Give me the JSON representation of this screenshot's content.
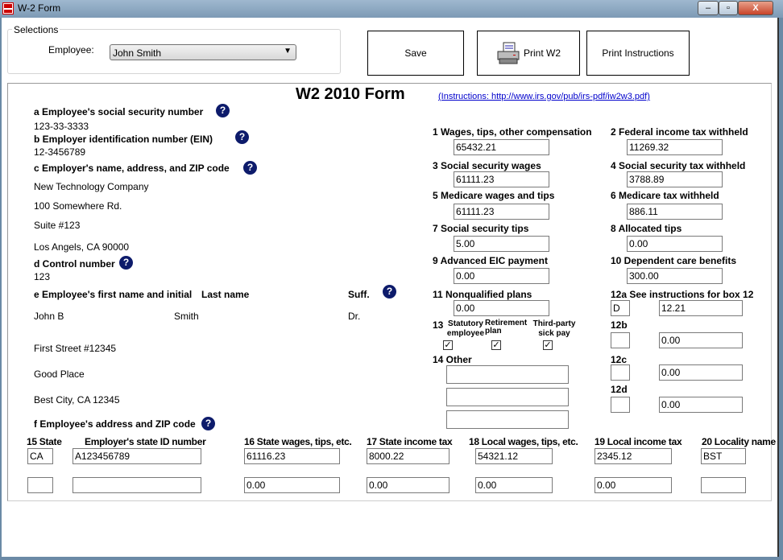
{
  "window": {
    "title": "W-2 Form",
    "minimize": "–",
    "maximize": "▫",
    "close": "X"
  },
  "selections": {
    "legend": "Selections",
    "employee_label": "Employee:",
    "employee_value": "John Smith"
  },
  "toolbar": {
    "save": "Save",
    "print_w2": "Print W2",
    "print_instructions": "Print Instructions"
  },
  "form": {
    "title": "W2 2010 Form",
    "instructions_link": "(Instructions: http://www.irs.gov/pub/irs-pdf/iw2w3.pdf)",
    "help_glyph": "?",
    "a": {
      "label": "a Employee's social security number",
      "value": "123-33-3333"
    },
    "b": {
      "label": "b Employer identification number (EIN)",
      "value": "12-3456789"
    },
    "c": {
      "label": "c Employer's name, address, and ZIP code",
      "lines": [
        "New Technology Company",
        "100 Somewhere Rd.",
        "Suite #123",
        "Los Angels, CA 90000"
      ]
    },
    "d": {
      "label": "d Control number",
      "value": "123"
    },
    "e": {
      "label": "e Employee's first name and initial",
      "last_label": "Last name",
      "suff_label": "Suff.",
      "first": "John B",
      "last": "Smith",
      "suff": "Dr.",
      "address": [
        "First Street #12345",
        "Good Place",
        "Best City, CA 12345"
      ]
    },
    "f": {
      "label": "f Employee's address and ZIP code"
    },
    "box1": {
      "label": "1 Wages, tips, other compensation",
      "value": "65432.21"
    },
    "box2": {
      "label": "2 Federal income tax withheld",
      "value": "11269.32"
    },
    "box3": {
      "label": "3 Social security wages",
      "value": "61111.23"
    },
    "box4": {
      "label": "4 Social security tax withheld",
      "value": "3788.89"
    },
    "box5": {
      "label": "5 Medicare wages and tips",
      "value": "61111.23"
    },
    "box6": {
      "label": "6 Medicare tax withheld",
      "value": "886.11"
    },
    "box7": {
      "label": "7 Social security tips",
      "value": "5.00"
    },
    "box8": {
      "label": "8 Allocated tips",
      "value": "0.00"
    },
    "box9": {
      "label": "9 Advanced EIC payment",
      "value": "0.00"
    },
    "box10": {
      "label": "10 Dependent care benefits",
      "value": "300.00"
    },
    "box11": {
      "label": "11 Nonqualified plans",
      "value": "0.00"
    },
    "box12a": {
      "label": "12a See instructions for box 12",
      "code": "D",
      "value": "12.21"
    },
    "box12b": {
      "label": "12b",
      "code": "",
      "value": "0.00"
    },
    "box12c": {
      "label": "12c",
      "code": "",
      "value": "0.00"
    },
    "box12d": {
      "label": "12d",
      "code": "",
      "value": "0.00"
    },
    "box13": {
      "label": "13",
      "statutory": "Statutory employee",
      "retirement": "Retirement plan",
      "thirdparty": "Third-party sick pay",
      "statutory_checked": true,
      "retirement_checked": true,
      "thirdparty_checked": true,
      "check_glyph": "✓"
    },
    "box14": {
      "label": "14 Other",
      "values": [
        "",
        "",
        ""
      ]
    },
    "state": {
      "headers": [
        "15 State",
        "Employer's state ID number",
        "16 State wages, tips, etc.",
        "17 State income tax",
        "18 Local wages, tips, etc.",
        "19 Local income tax",
        "20 Locality name"
      ],
      "rows": [
        [
          "CA",
          "A123456789",
          "61116.23",
          "8000.22",
          "54321.12",
          "2345.12",
          "BST"
        ],
        [
          "",
          "",
          "0.00",
          "0.00",
          "0.00",
          "0.00",
          ""
        ]
      ]
    }
  }
}
